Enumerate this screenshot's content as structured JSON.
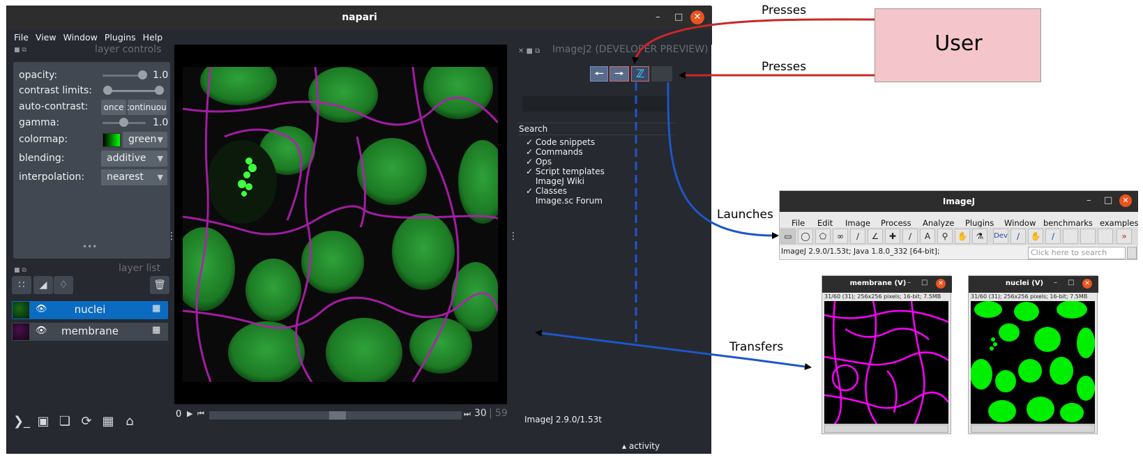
{
  "napari": {
    "title": "napari",
    "menu": [
      "File",
      "View",
      "Window",
      "Plugins",
      "Help"
    ],
    "layer_controls_title": "layer controls",
    "controls": {
      "opacity_label": "opacity:",
      "opacity_value": "1.0",
      "opacity": 1.0,
      "contrast_label": "contrast limits:",
      "autocontrast_label": "auto-contrast:",
      "autocontrast_once": "once",
      "autocontrast_continuous": "continuous",
      "gamma_label": "gamma:",
      "gamma_value": "1.0",
      "gamma": 1.0,
      "colormap_label": "colormap:",
      "colormap_value": "green",
      "blending_label": "blending:",
      "blending_value": "additive",
      "interpolation_label": "interpolation:",
      "interpolation_value": "nearest"
    },
    "layer_list_title": "layer list",
    "layers": [
      {
        "name": "nuclei",
        "selected": true
      },
      {
        "name": "membrane",
        "selected": false
      }
    ],
    "slider": {
      "current": "0",
      "frame": "30",
      "max": "59"
    },
    "activity_label": "activity"
  },
  "imagej2_panel": {
    "title": "ImageJ2 (DEVELOPER PREVIEW)",
    "search_header": "Search",
    "search_options": [
      {
        "label": "Code snippets",
        "checked": true
      },
      {
        "label": "Commands",
        "checked": true
      },
      {
        "label": "Ops",
        "checked": true
      },
      {
        "label": "Script templates",
        "checked": true
      },
      {
        "label": "ImageJ Wiki",
        "checked": false
      },
      {
        "label": "Classes",
        "checked": true
      },
      {
        "label": "Image.sc Forum",
        "checked": false
      }
    ],
    "version": "ImageJ 2.9.0/1.53t"
  },
  "imagej": {
    "title": "ImageJ",
    "menu": [
      "File",
      "Edit",
      "Image",
      "Process",
      "Analyze",
      "Plugins",
      "Window",
      "benchmarks",
      "examples"
    ],
    "status": "ImageJ 2.9.0/1.53t; Java 1.8.0_332 [64-bit];",
    "search_placeholder": "Click here to search",
    "dev_label": "Dev"
  },
  "image_windows": [
    {
      "title": "membrane (V)",
      "info": "31/60 (31); 256x256 pixels; 16-bit; 7.5MB",
      "color": "#ff00ff"
    },
    {
      "title": "nuclei (V)",
      "info": "31/60 (31); 256x256 pixels; 16-bit; 7.5MB",
      "color": "#00ff00"
    }
  ],
  "annotations": {
    "user": "User",
    "presses_1": "Presses",
    "presses_2": "Presses",
    "launches": "Launches",
    "transfers": "Transfers"
  },
  "colors": {
    "arrow_red": "#c62828",
    "arrow_blue": "#1e56c8",
    "user_fill": "#f4c6cb",
    "napari_bg": "#262930",
    "selected_layer": "#0a6bc1"
  }
}
